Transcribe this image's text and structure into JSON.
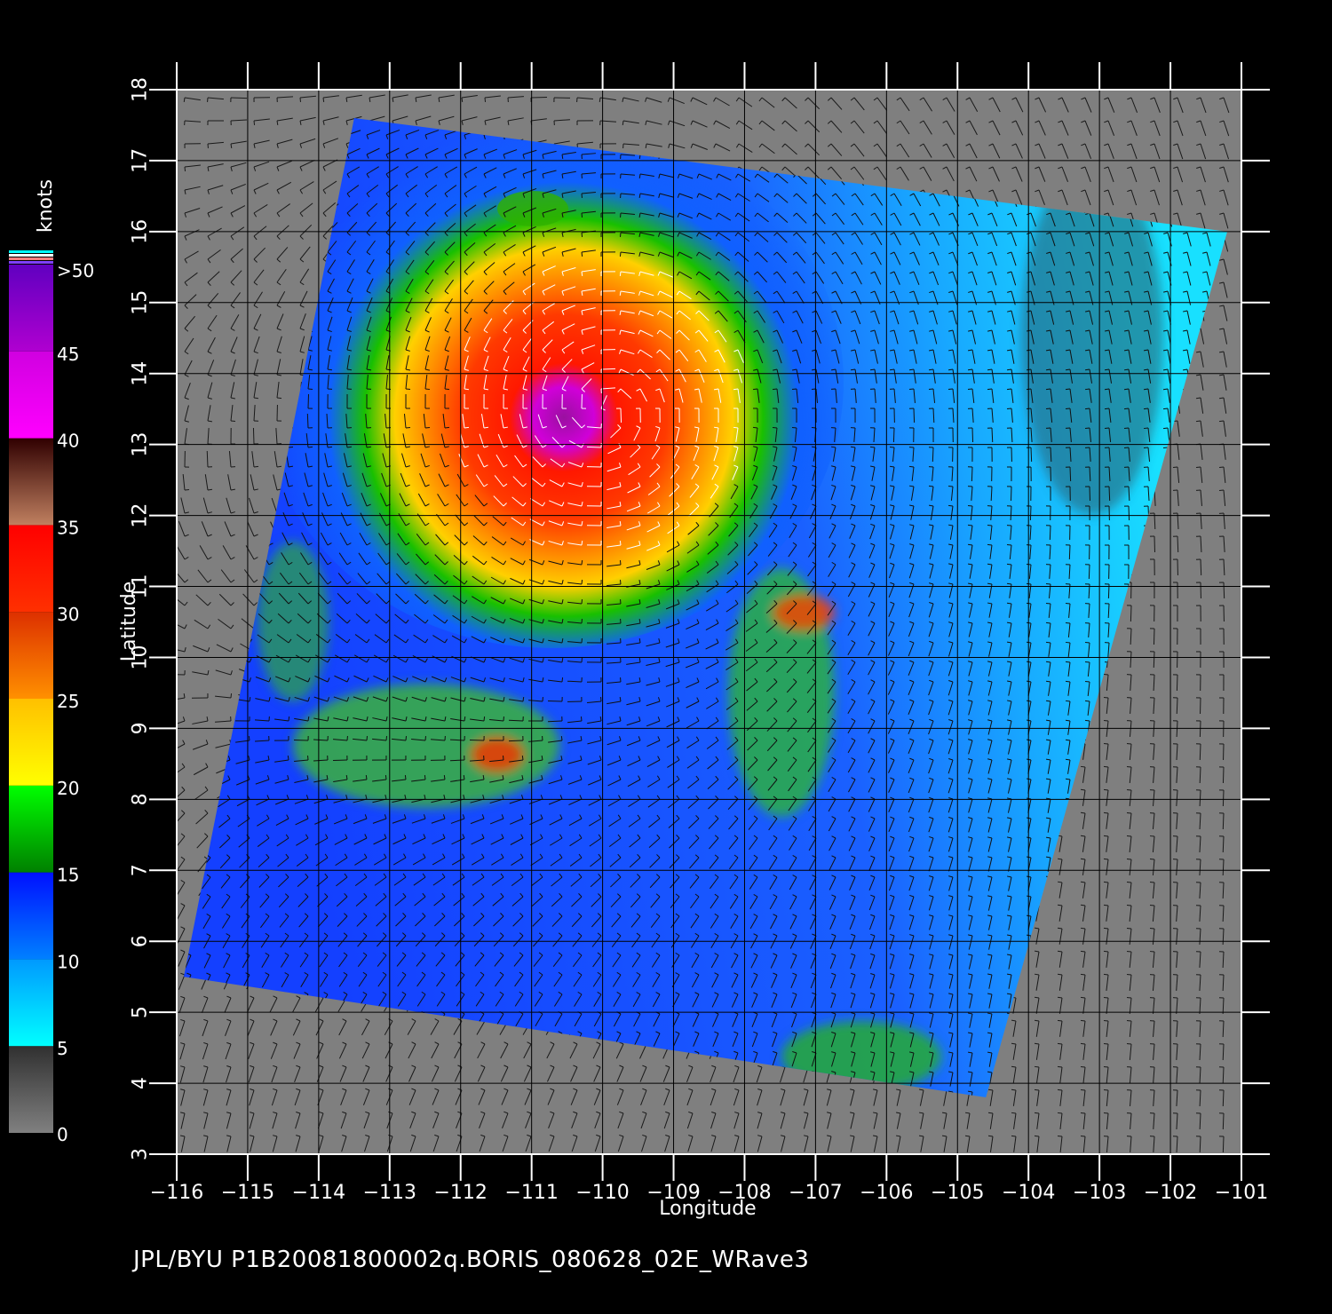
{
  "map": {
    "x_axis_label": "Longitude",
    "y_axis_label": "Latitude",
    "lon_range": [
      -116,
      -101
    ],
    "lat_range": [
      3,
      18
    ],
    "lon_ticks": [
      "−116",
      "−115",
      "−114",
      "−113",
      "−112",
      "−111",
      "−110",
      "−109",
      "−108",
      "−107",
      "−106",
      "−105",
      "−104",
      "−103",
      "−102",
      "−101"
    ],
    "lat_ticks": [
      "3",
      "4",
      "5",
      "6",
      "7",
      "8",
      "9",
      "10",
      "11",
      "12",
      "13",
      "14",
      "15",
      "16",
      "17",
      "18"
    ],
    "background_color": "#7f7f7f",
    "storm_center": {
      "lon": -110.0,
      "lat": 13.5
    },
    "swath_corners_lonlat": [
      [
        -113.5,
        17.6
      ],
      [
        -101.2,
        16.0
      ],
      [
        -104.6,
        3.8
      ],
      [
        -115.9,
        5.5
      ]
    ]
  },
  "colorbar": {
    "unit": "knots",
    "labels": [
      ">50",
      "45",
      "40",
      "35",
      "30",
      "25",
      "20",
      "15",
      "10",
      "5",
      "0"
    ],
    "bands": [
      {
        "from": 0,
        "to": 5,
        "colors": [
          "#808080",
          "#303030"
        ]
      },
      {
        "from": 5,
        "to": 10,
        "colors": [
          "#00ffff",
          "#0099ff"
        ]
      },
      {
        "from": 10,
        "to": 15,
        "colors": [
          "#0080ff",
          "#0010ff"
        ]
      },
      {
        "from": 15,
        "to": 20,
        "colors": [
          "#008000",
          "#00ff00"
        ]
      },
      {
        "from": 20,
        "to": 25,
        "colors": [
          "#ffff00",
          "#ffc000"
        ]
      },
      {
        "from": 25,
        "to": 30,
        "colors": [
          "#ff9000",
          "#dd3000"
        ]
      },
      {
        "from": 30,
        "to": 35,
        "colors": [
          "#ff3000",
          "#ff0000"
        ]
      },
      {
        "from": 35,
        "to": 40,
        "colors": [
          "#c08060",
          "#300000"
        ]
      },
      {
        "from": 40,
        "to": 45,
        "colors": [
          "#ff00ff",
          "#d000e0"
        ]
      },
      {
        "from": 45,
        "to": 50,
        "colors": [
          "#b000d0",
          "#6000c0"
        ]
      }
    ]
  },
  "footer": {
    "text": "JPL/BYU  P1B20081800002q.BORIS_080628_02E_WRave3"
  }
}
